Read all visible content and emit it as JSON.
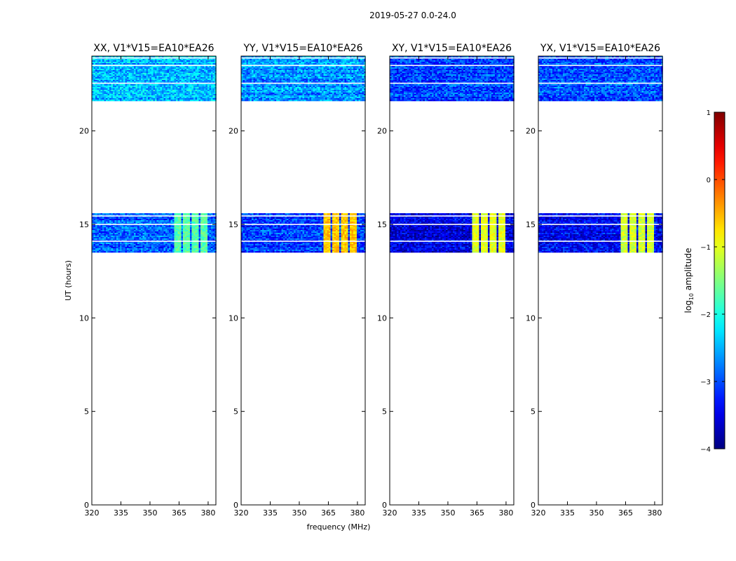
{
  "figure": {
    "title": "2019-05-27 0.0-24.0"
  },
  "chart_data": [
    {
      "type": "heatmap",
      "title": "XX, V1*V15=EA10*EA26",
      "xlabel": "",
      "ylabel": "UT (hours)",
      "xlim": [
        320,
        384
      ],
      "ylim": [
        0,
        24
      ],
      "xticks": [
        320,
        335,
        350,
        365,
        380
      ],
      "yticks": [
        0,
        5,
        10,
        15,
        20
      ],
      "data_bands": [
        [
          13.5,
          15.6
        ],
        [
          21.6,
          24.0
        ]
      ],
      "background_log_amp": -2.9,
      "rfi_channels_mhz": [
        [
          362,
          366
        ],
        [
          367,
          370
        ],
        [
          371,
          375
        ],
        [
          376,
          379
        ]
      ],
      "rfi_log_amp": -1.7
    },
    {
      "type": "heatmap",
      "title": "YY, V1*V15=EA10*EA26",
      "xlabel": "",
      "ylabel": "",
      "xlim": [
        320,
        384
      ],
      "ylim": [
        0,
        24
      ],
      "xticks": [
        320,
        335,
        350,
        365,
        380
      ],
      "yticks": [
        0,
        5,
        10,
        15,
        20
      ],
      "data_bands": [
        [
          13.5,
          15.6
        ],
        [
          21.6,
          24.0
        ]
      ],
      "background_log_amp": -3.1,
      "rfi_channels_mhz": [
        [
          362,
          366
        ],
        [
          367,
          370
        ],
        [
          371,
          375
        ],
        [
          376,
          379
        ]
      ],
      "rfi_log_amp": -0.6
    },
    {
      "type": "heatmap",
      "title": "XY, V1*V15=EA10*EA26",
      "xlabel": "frequency (MHz)",
      "ylabel": "",
      "xlim": [
        320,
        384
      ],
      "ylim": [
        0,
        24
      ],
      "xticks": [
        320,
        335,
        350,
        365,
        380
      ],
      "yticks": [
        0,
        5,
        10,
        15,
        20
      ],
      "data_bands": [
        [
          13.5,
          15.6
        ],
        [
          21.6,
          24.0
        ]
      ],
      "background_log_amp": -3.5,
      "rfi_channels_mhz": [
        [
          362,
          366
        ],
        [
          367,
          370
        ],
        [
          371,
          375
        ],
        [
          376,
          379
        ]
      ],
      "rfi_log_amp": -1.0
    },
    {
      "type": "heatmap",
      "title": "YX, V1*V15=EA10*EA26",
      "xlabel": "",
      "ylabel": "",
      "xlim": [
        320,
        384
      ],
      "ylim": [
        0,
        24
      ],
      "xticks": [
        320,
        335,
        350,
        365,
        380
      ],
      "yticks": [
        0,
        5,
        10,
        15,
        20
      ],
      "data_bands": [
        [
          13.5,
          15.6
        ],
        [
          21.6,
          24.0
        ]
      ],
      "background_log_amp": -3.4,
      "rfi_channels_mhz": [
        [
          362,
          366
        ],
        [
          367,
          370
        ],
        [
          371,
          375
        ],
        [
          376,
          379
        ]
      ],
      "rfi_log_amp": -1.1
    }
  ],
  "colorbar": {
    "label_prefix": "log",
    "label_sub": "10",
    "label_suffix": " amplitude",
    "min": -4,
    "max": 1,
    "ticks": [
      1,
      0,
      -1,
      -2,
      -3,
      -4
    ],
    "tick_labels": [
      "1",
      "0",
      "−1",
      "−2",
      "−3",
      "−4"
    ],
    "colormap": "jet"
  }
}
